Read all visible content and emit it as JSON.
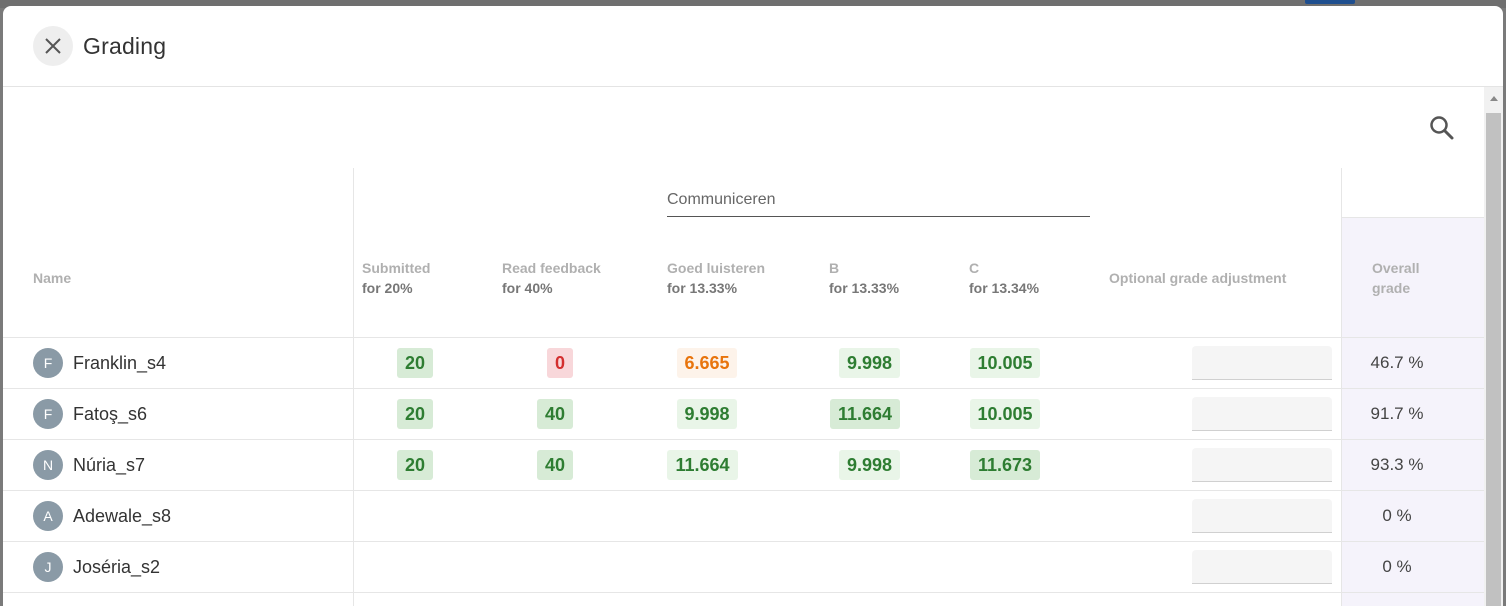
{
  "dialog": {
    "title": "Grading",
    "close_icon": "close-icon",
    "search_icon": "search-icon"
  },
  "table": {
    "group_header": "Communiceren",
    "columns": {
      "name": "Name",
      "submitted": {
        "label": "Submitted",
        "weight": "for 20%"
      },
      "read_feedback": {
        "label": "Read feedback",
        "weight": "for 40%"
      },
      "goed_luisteren": {
        "label": "Goed luisteren",
        "weight": "for 13.33%"
      },
      "b": {
        "label": "B",
        "weight": "for 13.33%"
      },
      "c": {
        "label": "C",
        "weight": "for 13.34%"
      },
      "adjustment": "Optional grade adjustment",
      "overall_line1": "Overall",
      "overall_line2": "grade"
    },
    "rows": [
      {
        "initial": "F",
        "name": "Franklin_s4",
        "submitted": "20",
        "read_feedback": "0",
        "goed_luisteren": "6.665",
        "b": "9.998",
        "c": "10.005",
        "overall": "46.7 %"
      },
      {
        "initial": "F",
        "name": "Fatoş_s6",
        "submitted": "20",
        "read_feedback": "40",
        "goed_luisteren": "9.998",
        "b": "11.664",
        "c": "10.005",
        "overall": "91.7 %"
      },
      {
        "initial": "N",
        "name": "Núria_s7",
        "submitted": "20",
        "read_feedback": "40",
        "goed_luisteren": "11.664",
        "b": "9.998",
        "c": "11.673",
        "overall": "93.3 %"
      },
      {
        "initial": "A",
        "name": "Adewale_s8",
        "overall": "0 %"
      },
      {
        "initial": "J",
        "name": "Joséria_s2",
        "overall": "0 %"
      }
    ]
  },
  "colors": {
    "score_full": "#2e7d32",
    "score_zero": "#d32f2f",
    "score_partial": "#e8740c",
    "overall_column_bg": "#f5f3fb"
  }
}
